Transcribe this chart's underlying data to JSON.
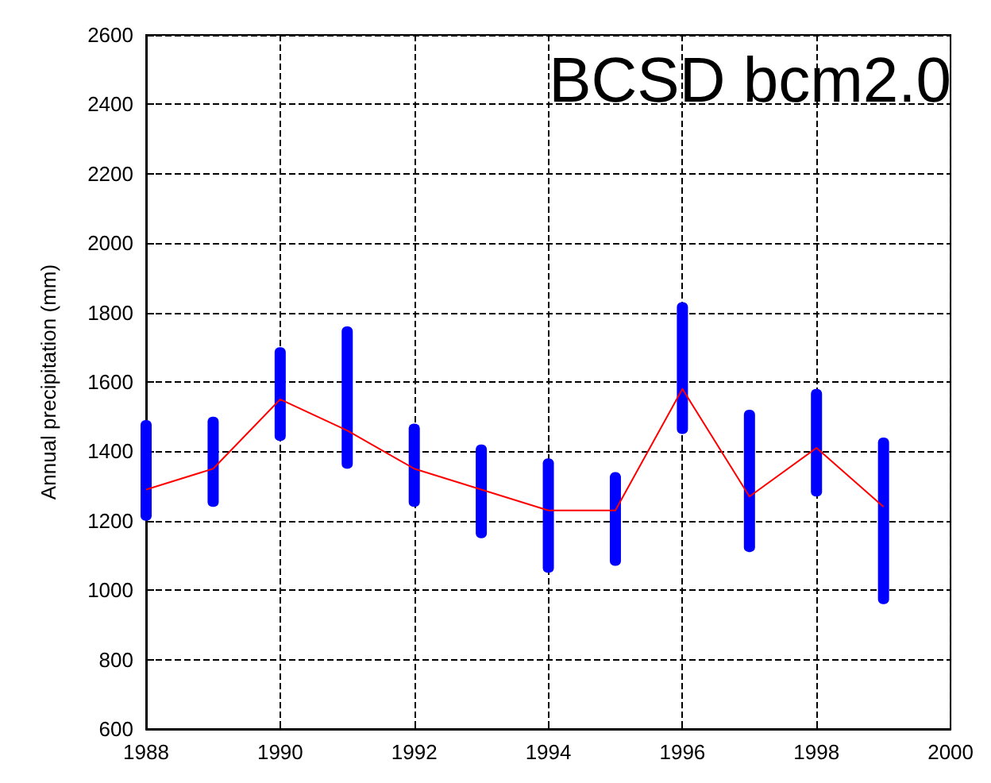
{
  "chart_data": {
    "type": "line",
    "title": "BCSD bcm2.0",
    "ylabel": "Annual precipitation (mm)",
    "xlim": [
      1988,
      2000
    ],
    "xticks": [
      1988,
      1990,
      1992,
      1994,
      1996,
      1998,
      2000
    ],
    "ylim": [
      600,
      2600
    ],
    "yticks": [
      600,
      800,
      1000,
      1200,
      1400,
      1600,
      1800,
      2000,
      2200,
      2400,
      2600
    ],
    "grid": true,
    "series": [
      {
        "type": "bar",
        "color": "#0000ff",
        "x": [
          1988,
          1989,
          1990,
          1991,
          1992,
          1993,
          1994,
          1995,
          1996,
          1997,
          1998,
          1999
        ],
        "base": [
          1200,
          1240,
          1430,
          1350,
          1240,
          1150,
          1050,
          1070,
          1450,
          1110,
          1270,
          960
        ],
        "values": [
          290,
          260,
          270,
          410,
          240,
          270,
          330,
          270,
          380,
          410,
          310,
          480
        ]
      },
      {
        "color": "#ff0000",
        "line_style": "solid",
        "marker": "none",
        "x": [
          1988,
          1989,
          1990,
          1991,
          1992,
          1993,
          1994,
          1995,
          1996,
          1997,
          1998,
          1999
        ],
        "values": [
          1290,
          1350,
          1550,
          1460,
          1350,
          1290,
          1230,
          1230,
          1580,
          1270,
          1410,
          1240
        ]
      }
    ]
  }
}
